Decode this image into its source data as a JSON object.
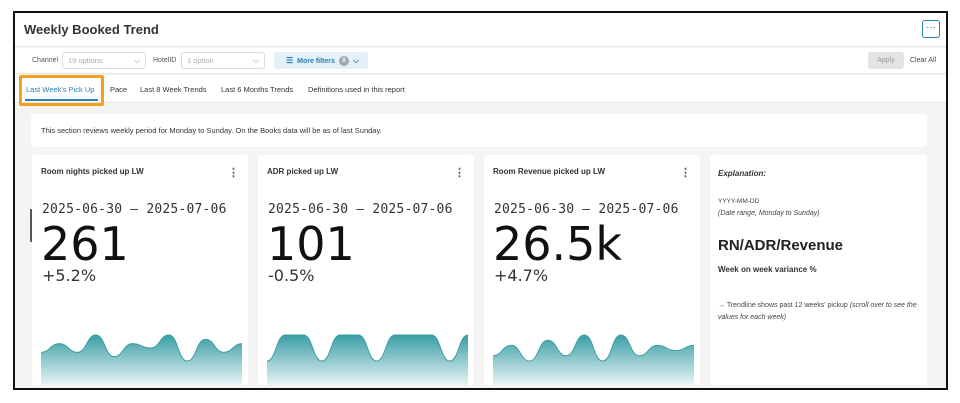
{
  "header": {
    "title": "Weekly Booked Trend",
    "more_label": "···"
  },
  "filters": {
    "channel_label": "Channel",
    "channel_value": "19 options",
    "hotel_label": "HotelID",
    "hotel_value": "1 option",
    "more_filters_label": "More filters",
    "more_filters_count": "0",
    "apply_label": "Apply",
    "clear_label": "Clear All"
  },
  "tabs": [
    {
      "label": "Last Week's Pick Up",
      "active": true
    },
    {
      "label": "Pace"
    },
    {
      "label": "Last 8 Week Trends"
    },
    {
      "label": "Last 6 Months Trends"
    },
    {
      "label": "Definitions used in this report"
    }
  ],
  "info": "This section reviews weekly period for Monday to Sunday. On the Books data will be as of last Sunday.",
  "cards": [
    {
      "title": "Room nights picked up LW",
      "range": "2025-06-30 — 2025-07-06",
      "value": "261",
      "variance": "+5.2%",
      "trend": [
        5,
        7,
        5,
        9,
        4,
        7,
        6,
        9,
        3,
        8,
        5,
        7
      ]
    },
    {
      "title": "ADR picked up LW",
      "range": "2025-06-30 — 2025-07-06",
      "value": "101",
      "variance": "-0.5%",
      "trend": [
        6,
        7,
        7,
        6,
        7,
        7,
        6,
        7,
        7,
        7,
        6,
        7
      ]
    },
    {
      "title": "Room Revenue picked up LW",
      "range": "2025-06-30 — 2025-07-06",
      "value": "26.5k",
      "variance": "+4.7%",
      "trend": [
        5,
        7,
        4,
        8,
        5,
        9,
        4,
        9,
        5,
        7,
        6,
        7
      ]
    }
  ],
  "explanation": {
    "heading": "Explanation:",
    "date_format": "YYYY-MM-DD",
    "date_range_note": "(Date range, Monday to Sunday)",
    "metric_names": "RN/ADR/Revenue",
    "variance_note": "Week on week variance %",
    "trend_note": "→ Trendline shows past 12 weeks' pickup",
    "trend_note_italic": "(scroll over to see the values for each week)"
  },
  "colors": {
    "accent": "#2a7fb8",
    "highlight": "#f2a01e",
    "trend_fill_top": "#3a9ea5",
    "trend_fill_bottom": "#e9f4f5"
  }
}
